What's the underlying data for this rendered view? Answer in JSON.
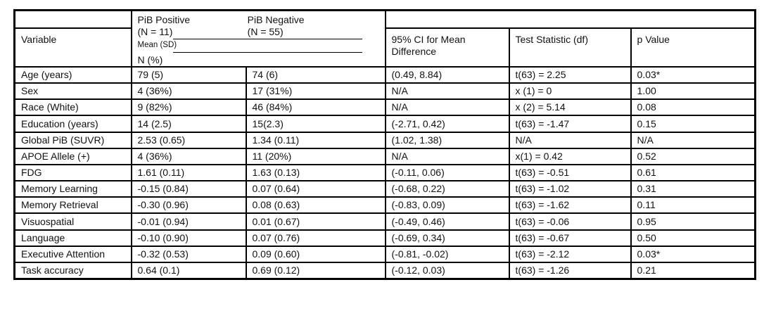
{
  "table": {
    "header": {
      "variable_label": "Variable",
      "group": {
        "col1_title": "PiB Positive",
        "col1_n": "(N = 11)",
        "col2_title": "PiB Negative",
        "col2_n": "(N = 55)",
        "measure_line1": "Mean (SD)",
        "measure_line2": "N (%)"
      },
      "right_cols": [
        "95% CI for Mean Difference",
        "Test Statistic (df)",
        "p Value"
      ]
    },
    "col_keys": [
      "variable",
      "pib-positive",
      "pib-negative",
      "ci-mean-difference",
      "test-statistic",
      "p-value"
    ],
    "rows": [
      [
        "Age (years)",
        "79 (5)",
        "74 (6)",
        "(0.49, 8.84)",
        "t(63) = 2.25",
        "0.03*"
      ],
      [
        "Sex",
        "4 (36%)",
        "17 (31%)",
        "N/A",
        "x (1) = 0",
        "1.00"
      ],
      [
        "Race (White)",
        "9 (82%)",
        "46 (84%)",
        "N/A",
        "x (2) = 5.14",
        "0.08"
      ],
      [
        "Education (years)",
        "14 (2.5)",
        "15(2.3)",
        "(-2.71, 0.42)",
        "t(63) = -1.47",
        "0.15"
      ],
      [
        "Global PiB (SUVR)",
        "2.53 (0.65)",
        "1.34 (0.11)",
        "(1.02, 1.38)",
        "N/A",
        "N/A"
      ],
      [
        "APOE Allele (+)",
        "4 (36%)",
        "11 (20%)",
        "N/A",
        "x(1) = 0.42",
        "0.52"
      ],
      [
        "FDG",
        "1.61 (0.11)",
        "1.63 (0.13)",
        "(-0.11, 0.06)",
        "t(63) = -0.51",
        "0.61"
      ],
      [
        "Memory Learning",
        "-0.15 (0.84)",
        "0.07 (0.64)",
        "(-0.68, 0.22)",
        "t(63) = -1.02",
        "0.31"
      ],
      [
        "Memory Retrieval",
        "-0.30 (0.96)",
        "0.08 (0.63)",
        "(-0.83, 0.09)",
        "t(63) = -1.62",
        "0.11"
      ],
      [
        "Visuospatial",
        "-0.01 (0.94)",
        "0.01 (0.67)",
        "(-0.49, 0.46)",
        "t(63) = -0.06",
        "0.95"
      ],
      [
        "Language",
        "-0.10 (0.90)",
        "0.07 (0.76)",
        "(-0.69, 0.34)",
        "t(63) = -0.67",
        "0.50"
      ],
      [
        "Executive Attention",
        "-0.32 (0.53)",
        "0.09 (0.60)",
        "(-0.81, -0.02)",
        "t(63) = -2.12",
        "0.03*"
      ],
      [
        "Task accuracy",
        "0.64 (0.1)",
        "0.69 (0.12)",
        "(-0.12, 0.03)",
        "t(63) = -1.26",
        "0.21"
      ]
    ]
  }
}
